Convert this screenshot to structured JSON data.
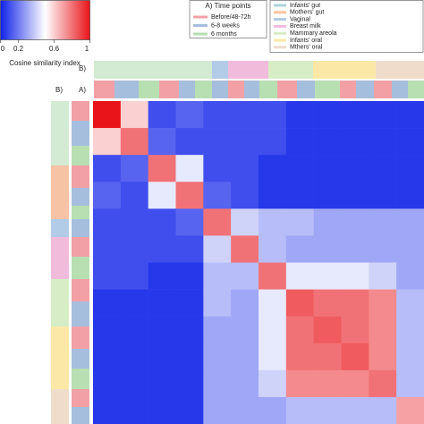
{
  "chart_data": {
    "type": "heatmap",
    "colorbar_label": "Cosine similarity index",
    "clim": [
      0,
      1
    ],
    "cticks": [
      0,
      0.2,
      0.6,
      1
    ],
    "colors": [
      "#0f22e8",
      "#ffffff",
      "#e8141a"
    ],
    "annotation_labels": [
      "B)",
      "A)"
    ],
    "legend_a": {
      "title": "A) Time points",
      "items": [
        {
          "name": "Before/48-72h",
          "color": "#f2a0a6"
        },
        {
          "name": "6-8 weeks",
          "color": "#a6bedd"
        },
        {
          "name": "6 months",
          "color": "#b7dfb2"
        }
      ]
    },
    "legend_b": {
      "items": [
        {
          "name": "Infants' gut",
          "color": "#a9d6d6"
        },
        {
          "name": "Mothers' gut",
          "color": "#f7c3a5"
        },
        {
          "name": "Vaginal",
          "color": "#b2cbe6"
        },
        {
          "name": "Breast milk",
          "color": "#f1bbdc"
        },
        {
          "name": "Mammary areola",
          "color": "#d7edc6"
        },
        {
          "name": "Infants' oral",
          "color": "#fbe8a6"
        },
        {
          "name": "Mthers' oral",
          "color": "#efdccb"
        }
      ]
    },
    "values": [
      [
        1,
        0.6,
        0.1,
        0.15,
        0.1,
        0.1,
        0.1,
        0.05,
        0.05,
        0.05,
        0.05,
        0.05
      ],
      [
        0.6,
        0.8,
        0.15,
        0.1,
        0.1,
        0.1,
        0.1,
        0.05,
        0.05,
        0.05,
        0.05,
        0.05
      ],
      [
        0.1,
        0.15,
        0.8,
        0.45,
        0.1,
        0.1,
        0.05,
        0.05,
        0.05,
        0.05,
        0.05,
        0.05
      ],
      [
        0.15,
        0.1,
        0.45,
        0.8,
        0.15,
        0.1,
        0.05,
        0.05,
        0.05,
        0.05,
        0.05,
        0.05
      ],
      [
        0.1,
        0.1,
        0.1,
        0.15,
        0.8,
        0.4,
        0.35,
        0.35,
        0.3,
        0.3,
        0.3,
        0.3
      ],
      [
        0.1,
        0.1,
        0.1,
        0.1,
        0.4,
        0.8,
        0.35,
        0.3,
        0.3,
        0.3,
        0.3,
        0.3
      ],
      [
        0.1,
        0.1,
        0.05,
        0.05,
        0.35,
        0.35,
        0.8,
        0.45,
        0.45,
        0.45,
        0.4,
        0.3
      ],
      [
        0.05,
        0.05,
        0.05,
        0.05,
        0.35,
        0.3,
        0.45,
        0.85,
        0.8,
        0.8,
        0.75,
        0.35
      ],
      [
        0.05,
        0.05,
        0.05,
        0.05,
        0.3,
        0.3,
        0.45,
        0.8,
        0.85,
        0.8,
        0.75,
        0.35
      ],
      [
        0.05,
        0.05,
        0.05,
        0.05,
        0.3,
        0.3,
        0.45,
        0.8,
        0.8,
        0.85,
        0.75,
        0.35
      ],
      [
        0.05,
        0.05,
        0.05,
        0.05,
        0.3,
        0.3,
        0.4,
        0.75,
        0.75,
        0.75,
        0.8,
        0.35
      ],
      [
        0.05,
        0.05,
        0.05,
        0.05,
        0.3,
        0.3,
        0.3,
        0.35,
        0.35,
        0.35,
        0.35,
        0.7
      ]
    ]
  }
}
